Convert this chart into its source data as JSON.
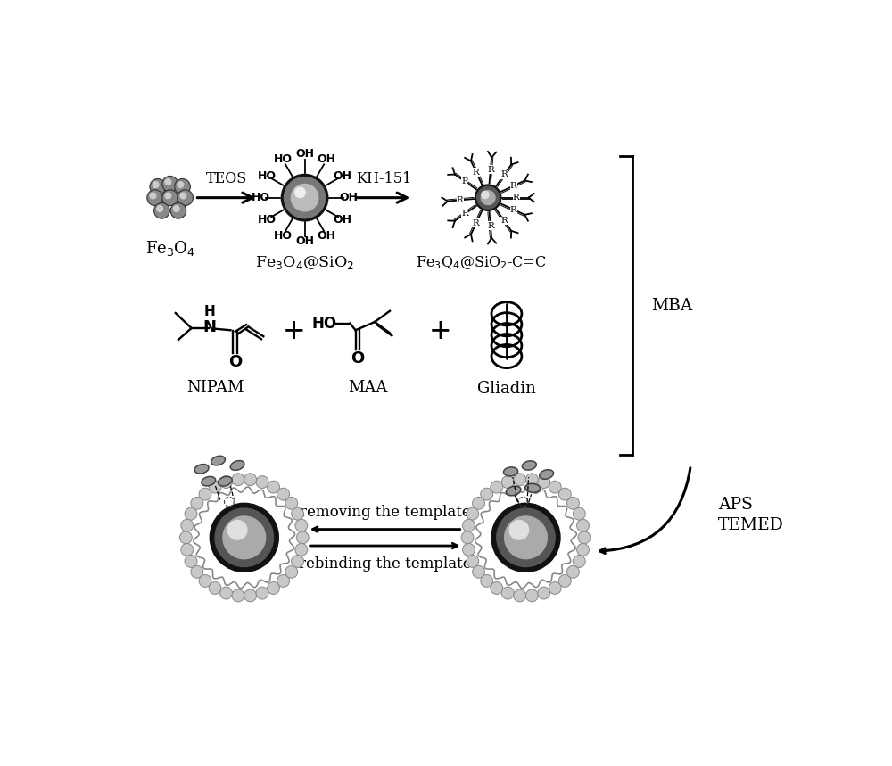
{
  "bg_color": "#ffffff",
  "text_color": "#000000",
  "figsize": [
    10,
    8.59
  ],
  "dpi": 100,
  "label_teos": "TEOS",
  "label_kh151": "KH-151",
  "label_mba": "MBA",
  "label_aps": "APS",
  "label_temed": "TEMED",
  "label_nipam": "NIPAM",
  "label_maa": "MAA",
  "label_gliadin": "Gliadin",
  "label_removing": "removing the template",
  "label_rebinding": "rebinding the template",
  "fe3o4_label": "Fe$_3$O$_4$",
  "fe3o4sio2_label": "Fe$_3$O$_4$@SiO$_2$",
  "fe3q4sio2cc_label": "Fe$_3$Q$_4$@SiO$_2$-C=C"
}
